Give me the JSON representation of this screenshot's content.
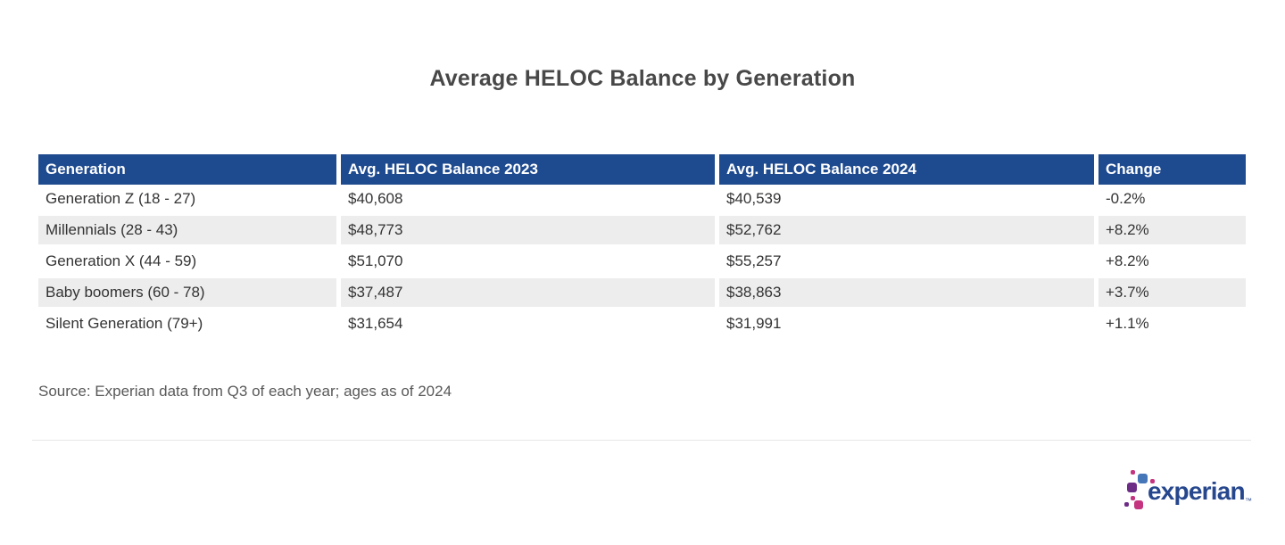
{
  "title": "Average HELOC Balance by Generation",
  "table": {
    "columns": [
      "Generation",
      "Avg. HELOC Balance 2023",
      "Avg. HELOC Balance 2024",
      "Change"
    ],
    "rows": [
      {
        "generation": "Generation Z (18 - 27)",
        "balance_2023": "$40,608",
        "balance_2024": "$40,539",
        "change": "-0.2%"
      },
      {
        "generation": "Millennials (28 - 43)",
        "balance_2023": "$48,773",
        "balance_2024": "$52,762",
        "change": "+8.2%"
      },
      {
        "generation": "Generation X (44 - 59)",
        "balance_2023": "$51,070",
        "balance_2024": "$55,257",
        "change": "+8.2%"
      },
      {
        "generation": "Baby boomers (60 - 78)",
        "balance_2023": "$37,487",
        "balance_2024": "$38,863",
        "change": "+3.7%"
      },
      {
        "generation": "Silent Generation (79+)",
        "balance_2023": "$31,654",
        "balance_2024": "$31,991",
        "change": "+1.1%"
      }
    ]
  },
  "source_note": "Source: Experian data from Q3 of each year; ages as of 2024",
  "logo": {
    "brand": "experian",
    "trademark": "™"
  },
  "colors": {
    "header_bg": "#1e4a8f",
    "header_text": "#ffffff",
    "row_alt_bg": "#ededed",
    "body_text": "#333333",
    "title_text": "#484848",
    "source_text": "#595959",
    "brand_blue": "#26478d",
    "logo_light_blue": "#4576b8",
    "logo_purple": "#6d2d87",
    "logo_magenta": "#c4347f"
  },
  "chart_data": {
    "type": "table",
    "title": "Average HELOC Balance by Generation",
    "columns": [
      "Generation",
      "Avg. HELOC Balance 2023",
      "Avg. HELOC Balance 2024",
      "Change"
    ],
    "rows": [
      [
        "Generation Z (18 - 27)",
        40608,
        40539,
        -0.2
      ],
      [
        "Millennials (28 - 43)",
        48773,
        52762,
        8.2
      ],
      [
        "Generation X (44 - 59)",
        51070,
        55257,
        8.2
      ],
      [
        "Baby boomers (60 - 78)",
        37487,
        38863,
        3.7
      ],
      [
        "Silent Generation (79+)",
        31654,
        31991,
        1.1
      ]
    ],
    "value_units": "USD",
    "change_units": "percent",
    "source": "Source: Experian data from Q3 of each year; ages as of 2024"
  }
}
